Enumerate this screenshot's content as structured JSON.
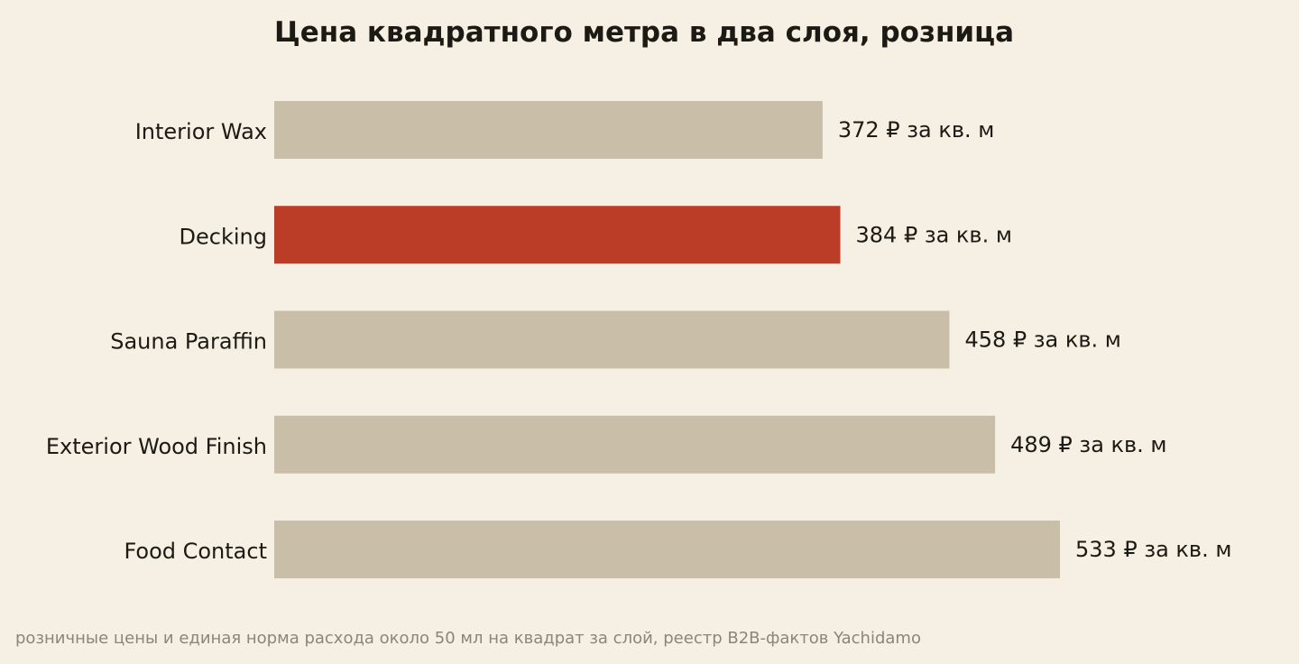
{
  "chart_data": {
    "type": "bar",
    "orientation": "horizontal",
    "title": "Цена квадратного метра в два слоя, розница",
    "categories": [
      "Interior Wax",
      "Decking",
      "Sauna Paraffin",
      "Exterior Wood Finish",
      "Food Contact"
    ],
    "values": [
      372,
      384,
      458,
      489,
      533
    ],
    "data_labels": [
      "372 ₽ за кв. м",
      "384 ₽ за кв. м",
      "458 ₽ за кв. м",
      "489 ₽ за кв. м",
      "533 ₽ за кв. м"
    ],
    "highlight_index": 1,
    "colors": {
      "bar": "#c9bfa8",
      "highlight": "#bb3d27",
      "background": "#f6efe3",
      "text": "#1c1a14",
      "note": "#8c857a"
    },
    "xlabel": "",
    "ylabel": "",
    "grid": false,
    "legend": "none",
    "note": "розничные цены и единая норма расхода около 50 мл на квадрат за слой, реестр B2B-фактов Yachidamo"
  }
}
